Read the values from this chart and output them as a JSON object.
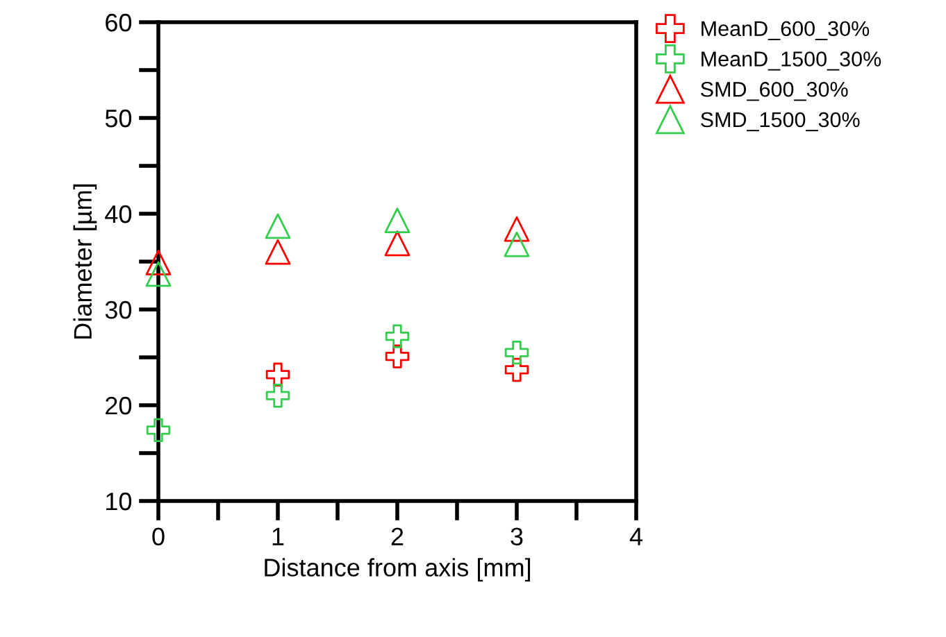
{
  "chart_data": {
    "type": "scatter",
    "xlabel": "Distance from axis [mm]",
    "ylabel": "Diameter [µm]",
    "x": [
      0,
      1,
      2,
      3
    ],
    "series": [
      {
        "name": "MeanD_600_30%",
        "color": "#ff0000",
        "marker": "cross",
        "values": [
          null,
          23.2,
          25.1,
          23.7
        ]
      },
      {
        "name": "MeanD_1500_30%",
        "color": "#33cc4d",
        "marker": "cross",
        "values": [
          17.4,
          21.0,
          27.2,
          25.5
        ]
      },
      {
        "name": "SMD_600_30%",
        "color": "#ff0000",
        "marker": "triangle",
        "values": [
          34.9,
          36.0,
          36.9,
          38.4
        ]
      },
      {
        "name": "SMD_1500_30%",
        "color": "#33cc4d",
        "marker": "triangle",
        "values": [
          33.7,
          38.7,
          39.3,
          36.8
        ]
      }
    ],
    "xlim": [
      0,
      4
    ],
    "ylim": [
      10,
      60
    ],
    "xticks": [
      0,
      {
        "value": 0.5,
        "label": null
      },
      1,
      {
        "value": 1.5,
        "label": null
      },
      2,
      {
        "value": 2.5,
        "label": null
      },
      3,
      {
        "value": 3.5,
        "label": null
      },
      4
    ],
    "yticks": [
      10,
      {
        "value": 15,
        "label": null
      },
      20,
      {
        "value": 25,
        "label": null
      },
      30,
      {
        "value": 35,
        "label": null
      },
      40,
      {
        "value": 45,
        "label": null
      },
      50,
      {
        "value": 55,
        "label": null
      },
      60
    ],
    "grid": false,
    "legend": "top right"
  }
}
